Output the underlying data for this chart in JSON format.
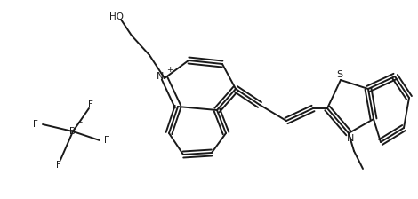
{
  "bg_color": "#ffffff",
  "line_color": "#1a1a1a",
  "line_width": 1.4,
  "figsize": [
    4.7,
    2.24
  ],
  "dpi": 100,
  "xlim": [
    0,
    470
  ],
  "ylim": [
    0,
    224
  ]
}
